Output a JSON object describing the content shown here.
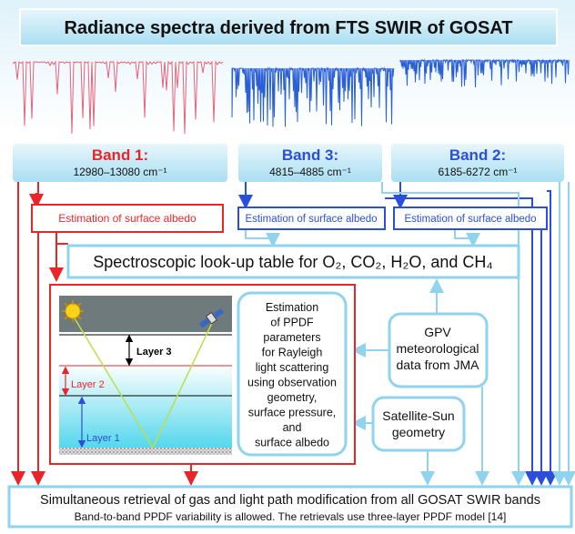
{
  "title": "Radiance spectra derived from FTS SWIR of GOSAT",
  "bands": [
    {
      "label": "Band 1:",
      "range": "12980–13080 cm⁻¹"
    },
    {
      "label": "Band 3:",
      "range": "4815–4885 cm⁻¹"
    },
    {
      "label": "Band 2:",
      "range": "6185-6272 cm⁻¹"
    }
  ],
  "albedo_boxes": [
    "Estimation of surface albedo",
    "Estimation of surface albedo",
    "Estimation of surface albedo"
  ],
  "lookup_table": "Spectroscopic look-up table for O₂, CO₂, H₂O, and CH₄",
  "layers": [
    "Layer 3",
    "Layer 2",
    "Layer 1"
  ],
  "ppdf_box": [
    "Estimation",
    "of PPDF",
    "parameters",
    "for Rayleigh",
    "light scattering",
    "using observation",
    "geometry,",
    "surface pressure,",
    "and",
    "surface albedo"
  ],
  "gpv_box": [
    "GPV",
    "meteorological",
    "data from JMA"
  ],
  "geometry_box": [
    "Satellite-Sun",
    "geometry"
  ],
  "retrieval": {
    "title": "Simultaneous retrieval of gas and light path modification from all GOSAT SWIR bands",
    "note": "Band-to-band PPDF variability is allowed. The retrievals use three-layer PPDF model [14]"
  }
}
